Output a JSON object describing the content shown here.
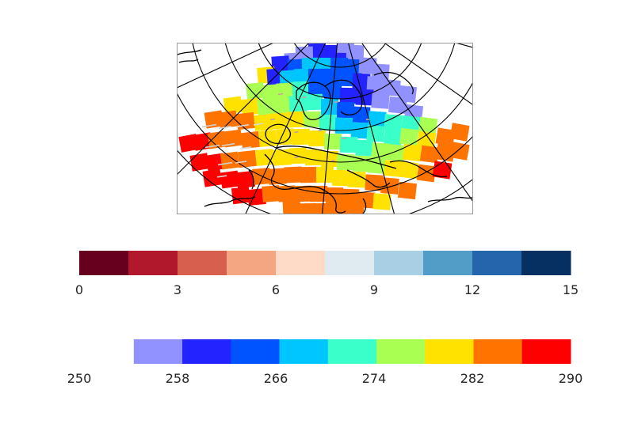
{
  "chart_data": [
    {
      "type": "heatmap",
      "title": "",
      "description_kind": "map",
      "colorbar": {
        "min": 250,
        "max": 290,
        "tick_labels": [
          "250",
          "258",
          "266",
          "274",
          "282",
          "290"
        ],
        "colors": [
          "#9191ff",
          "#2323ff",
          "#0054ff",
          "#00c6ff",
          "#3bffcb",
          "#a9ff52",
          "#ffe200",
          "#ff7300",
          "#ff0000"
        ],
        "first_color_start": 254.44
      }
    },
    {
      "type": "heatmap",
      "title": "",
      "colorbar": {
        "min": 0,
        "max": 15,
        "tick_labels": [
          "0",
          "3",
          "6",
          "9",
          "12",
          "15"
        ],
        "colors": [
          "#67001f",
          "#b2182b",
          "#d6604d",
          "#f4a582",
          "#fddbc7",
          "#e0ebf1",
          "#a9cfe5",
          "#529dc8",
          "#2465ab",
          "#053061"
        ]
      }
    }
  ]
}
